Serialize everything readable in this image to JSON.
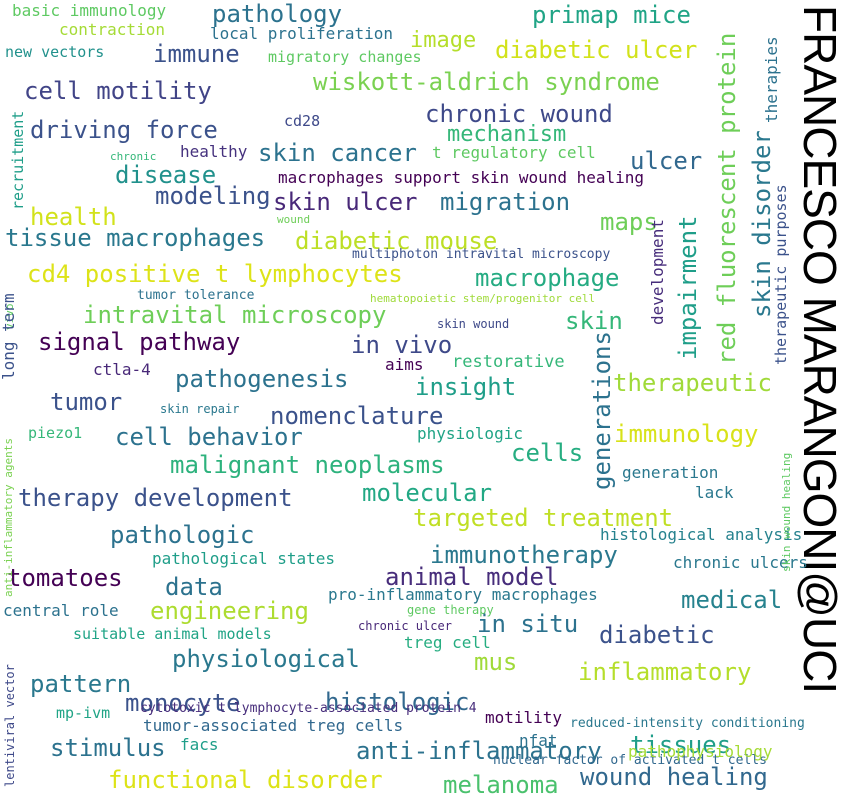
{
  "author": "FRANCESCO MARANGONI@UCI",
  "words": [
    {
      "text": "basic immunology",
      "color": "#5ec962"
    },
    {
      "text": "pathology",
      "color": "#2c728e"
    },
    {
      "text": "primap mice",
      "color": "#20a486"
    },
    {
      "text": "contraction",
      "color": "#a5db36"
    },
    {
      "text": "local proliferation",
      "color": "#2c728e"
    },
    {
      "text": "image",
      "color": "#b5de2b"
    },
    {
      "text": "new vectors",
      "color": "#21918c"
    },
    {
      "text": "immune",
      "color": "#3b528b"
    },
    {
      "text": "migratory changes",
      "color": "#5ec962"
    },
    {
      "text": "diabetic ulcer",
      "color": "#d2e21b"
    },
    {
      "text": "wiskott-aldrich syndrome",
      "color": "#7ad151"
    },
    {
      "text": "cell motility",
      "color": "#414487"
    },
    {
      "text": "chronic wound",
      "color": "#3e4989"
    },
    {
      "text": "cd28",
      "color": "#3e4989"
    },
    {
      "text": "driving force",
      "color": "#3b528b"
    },
    {
      "text": "mechanism",
      "color": "#35b779"
    },
    {
      "text": "skin cancer",
      "color": "#2c728e"
    },
    {
      "text": "t regulatory cell",
      "color": "#5ec962"
    },
    {
      "text": "healthy",
      "color": "#46327e"
    },
    {
      "text": "chronic",
      "color": "#35b779"
    },
    {
      "text": "ulcer",
      "color": "#31688e"
    },
    {
      "text": "disease",
      "color": "#21918c"
    },
    {
      "text": "modeling",
      "color": "#3b528b"
    },
    {
      "text": "macrophages support skin wound healing",
      "color": "#440154"
    },
    {
      "text": "health",
      "color": "#d2e21b"
    },
    {
      "text": "skin ulcer",
      "color": "#482878"
    },
    {
      "text": "migration",
      "color": "#2c728e"
    },
    {
      "text": "wound",
      "color": "#6ece58"
    },
    {
      "text": "tissue macrophages",
      "color": "#2a788e"
    },
    {
      "text": "diabetic mouse",
      "color": "#bddf26"
    },
    {
      "text": "maps",
      "color": "#6ece58"
    },
    {
      "text": "multiphoton intravital microscopy",
      "color": "#3b528b"
    },
    {
      "text": "cd4 positive t lymphocytes",
      "color": "#dde318"
    },
    {
      "text": "macrophage",
      "color": "#25ab82"
    },
    {
      "text": "tumor tolerance",
      "color": "#2c728e"
    },
    {
      "text": "hematopoietic stem/progenitor cell",
      "color": "#9fda3a"
    },
    {
      "text": "intravital microscopy",
      "color": "#6ece58"
    },
    {
      "text": "skin",
      "color": "#35b779"
    },
    {
      "text": "signal pathway",
      "color": "#440154"
    },
    {
      "text": "in vivo",
      "color": "#3e4989"
    },
    {
      "text": "skin wound",
      "color": "#3e4989"
    },
    {
      "text": "aims",
      "color": "#440154"
    },
    {
      "text": "restorative",
      "color": "#35b779"
    },
    {
      "text": "ctla-4",
      "color": "#482878"
    },
    {
      "text": "pathogenesis",
      "color": "#2c728e"
    },
    {
      "text": "insight",
      "color": "#1f9e89"
    },
    {
      "text": "therapeutic",
      "color": "#a0da39"
    },
    {
      "text": "tumor",
      "color": "#3b528b"
    },
    {
      "text": "skin repair",
      "color": "#2a788e"
    },
    {
      "text": "nomenclature",
      "color": "#3b528b"
    },
    {
      "text": "piezo1",
      "color": "#35b779"
    },
    {
      "text": "physiologic",
      "color": "#20a486"
    },
    {
      "text": "immunology",
      "color": "#d8e219"
    },
    {
      "text": "cell behavior",
      "color": "#2c728e"
    },
    {
      "text": "malignant neoplasms",
      "color": "#2db27d"
    },
    {
      "text": "cells",
      "color": "#26ad81"
    },
    {
      "text": "generation",
      "color": "#2a788e"
    },
    {
      "text": "lack",
      "color": "#2a788e"
    },
    {
      "text": "therapy development",
      "color": "#3b528b"
    },
    {
      "text": "molecular",
      "color": "#22a884"
    },
    {
      "text": "targeted treatment",
      "color": "#c0df25"
    },
    {
      "text": "histological analysis",
      "color": "#26828e"
    },
    {
      "text": "pathologic",
      "color": "#2c728e"
    },
    {
      "text": "pathological states",
      "color": "#1f9e89"
    },
    {
      "text": "immunotherapy",
      "color": "#2a788e"
    },
    {
      "text": "chronic ulcers",
      "color": "#2a788e"
    },
    {
      "text": "tomatoes",
      "color": "#440154"
    },
    {
      "text": "data",
      "color": "#2c728e"
    },
    {
      "text": "animal model",
      "color": "#472d7b"
    },
    {
      "text": "engineering",
      "color": "#addc30"
    },
    {
      "text": "pro-inflammatory macrophages",
      "color": "#2a788e"
    },
    {
      "text": "medical",
      "color": "#26828e"
    },
    {
      "text": "central role",
      "color": "#2c728e"
    },
    {
      "text": "gene therapy",
      "color": "#5ec962"
    },
    {
      "text": "in situ",
      "color": "#2c728e"
    },
    {
      "text": "diabetic",
      "color": "#3b528b"
    },
    {
      "text": "suitable animal models",
      "color": "#20a486"
    },
    {
      "text": "chronic ulcer",
      "color": "#482878"
    },
    {
      "text": "treg cell",
      "color": "#26ad81"
    },
    {
      "text": "physiological",
      "color": "#2a788e"
    },
    {
      "text": "mus",
      "color": "#a0da39"
    },
    {
      "text": "inflammatory",
      "color": "#b5de2b"
    },
    {
      "text": "pattern",
      "color": "#2a788e"
    },
    {
      "text": "monocyte",
      "color": "#3b528b"
    },
    {
      "text": "histologic",
      "color": "#31688e"
    },
    {
      "text": "cytotoxic t lymphocyte-associated protein 4",
      "color": "#472d7b"
    },
    {
      "text": "motility",
      "color": "#440154"
    },
    {
      "text": "reduced-intensity conditioning",
      "color": "#2a788e"
    },
    {
      "text": "mp-ivm",
      "color": "#20a486"
    },
    {
      "text": "tumor-associated treg cells",
      "color": "#31688e"
    },
    {
      "text": "nfat",
      "color": "#2c728e"
    },
    {
      "text": "tissues",
      "color": "#1f9e89"
    },
    {
      "text": "stimulus",
      "color": "#2c728e"
    },
    {
      "text": "facs",
      "color": "#1f9e89"
    },
    {
      "text": "anti-inflammatory",
      "color": "#2c728e"
    },
    {
      "text": "nuclear factor of activated t cells",
      "color": "#31688e"
    },
    {
      "text": "pathophysiology",
      "color": "#a5db36"
    },
    {
      "text": "functional disorder",
      "color": "#dde318"
    },
    {
      "text": "melanoma",
      "color": "#4ac16d"
    },
    {
      "text": "wound healing",
      "color": "#31688e"
    },
    {
      "text": "recruitment",
      "color": "#1f9e89"
    },
    {
      "text": "health",
      "color": "#d2e21b"
    },
    {
      "text": "vivo",
      "color": "#5ec962"
    },
    {
      "text": "long term",
      "color": "#3b528b"
    },
    {
      "text": "anti-inflammatory agents",
      "color": "#7ad151"
    },
    {
      "text": "lentiviral vector",
      "color": "#3e4989"
    },
    {
      "text": "red fluorescent protein",
      "color": "#6ece58"
    },
    {
      "text": "impairment",
      "color": "#1f9e89"
    },
    {
      "text": "development",
      "color": "#472d7b"
    },
    {
      "text": "generations",
      "color": "#2c728e"
    },
    {
      "text": "skin disorder",
      "color": "#2a788e"
    },
    {
      "text": "therapeutic purposes",
      "color": "#3b528b"
    },
    {
      "text": "therapies",
      "color": "#2c728e"
    },
    {
      "text": "skin wound healing",
      "color": "#5ec962"
    }
  ]
}
